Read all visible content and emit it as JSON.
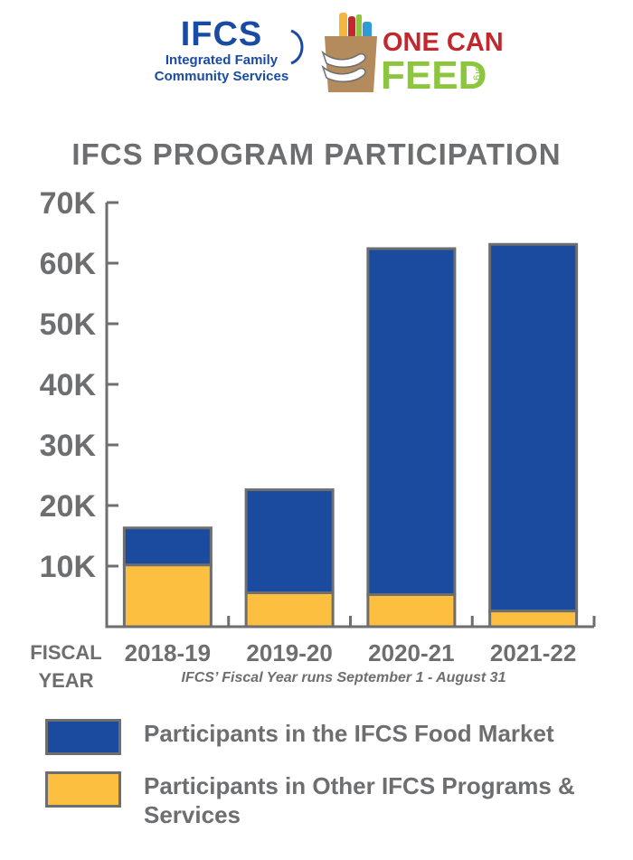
{
  "logos": {
    "ifcs": {
      "wordmark": "IFCS",
      "line1": "Integrated Family",
      "line2": "Community Services",
      "color": "#1a4ba3"
    },
    "onecanfeed": {
      "line1": "ONE CAN",
      "line2": "FEED",
      "suffix": ".org",
      "red": "#c2272d",
      "green": "#8cc63f"
    }
  },
  "chart_data": {
    "type": "bar",
    "stacked": true,
    "title": "IFCS PROGRAM PARTICIPATION",
    "categories": [
      "2018-19",
      "2019-20",
      "2020-21",
      "2021-22"
    ],
    "series": [
      {
        "name": "Participants in Other IFCS Programs & Services",
        "color": "#fcbf3f",
        "values": [
          10200,
          5600,
          5300,
          2600
        ]
      },
      {
        "name": "Participants in the IFCS Food Market",
        "color": "#1a4b9e",
        "values": [
          6100,
          17000,
          57100,
          60500
        ]
      }
    ],
    "ylim": [
      0,
      70000
    ],
    "yticks": [
      {
        "value": 10000,
        "label": "10K"
      },
      {
        "value": 20000,
        "label": "20K"
      },
      {
        "value": 30000,
        "label": "30K"
      },
      {
        "value": 40000,
        "label": "40K"
      },
      {
        "value": 50000,
        "label": "50K"
      },
      {
        "value": 60000,
        "label": "60K"
      },
      {
        "value": 70000,
        "label": "70K"
      }
    ],
    "xlabel": "FISCAL YEAR",
    "xlabel_lines": [
      "FISCAL",
      "YEAR"
    ],
    "note": "IFCS’ Fiscal Year runs September 1 - August 31",
    "grid": false,
    "legend_position": "bottom",
    "axis_color": "#6d6e70",
    "text_color": "#6d6e70"
  },
  "legend": {
    "items": [
      {
        "label": "Participants in the IFCS Food Market",
        "color": "#1a4b9e"
      },
      {
        "label": "Participants in Other IFCS Programs & Services",
        "color": "#fcbf3f"
      }
    ]
  }
}
